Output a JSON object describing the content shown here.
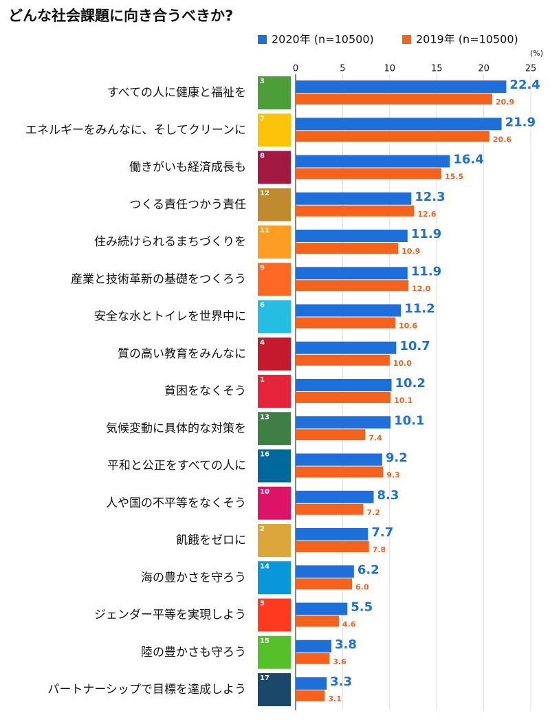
{
  "chart_data": {
    "type": "hbar",
    "title": "どんな社会課題に向き合うべきか?",
    "unit": "(%)",
    "categories": [
      "すべての人に健康と福祉を",
      "エネルギーをみんなに、そしてクリーンに",
      "働きがいも経済成長も",
      "つくる責任つかう責任",
      "住み続けられるまちづくりを",
      "産業と技術革新の基礎をつくろう",
      "安全な水とトイレを世界中に",
      "質の高い教育をみんなに",
      "貧困をなくそう",
      "気候変動に具体的な対策を",
      "平和と公正をすべての人に",
      "人や国の不平等をなくそう",
      "飢餓をゼロに",
      "海の豊かさを守ろう",
      "ジェンダー平等を実現しよう",
      "陸の豊かさも守ろう",
      "パートナーシップで目標を達成しよう"
    ],
    "goal_numbers": [
      3,
      7,
      8,
      12,
      11,
      9,
      6,
      4,
      1,
      13,
      16,
      10,
      2,
      14,
      5,
      15,
      17
    ],
    "goal_colors": [
      "#4C9F38",
      "#FCC30B",
      "#A21942",
      "#BF8B2E",
      "#FD9D24",
      "#FD6925",
      "#26BDE2",
      "#C5192D",
      "#E5243B",
      "#3F7E44",
      "#00689D",
      "#DD1367",
      "#DDA63A",
      "#0A97D9",
      "#FF3A21",
      "#56C02B",
      "#19486A"
    ],
    "series": [
      {
        "name": "2020年 (n=10500)",
        "color": "#1E6FD9",
        "values": [
          22.4,
          21.9,
          16.4,
          12.3,
          11.9,
          11.9,
          11.2,
          10.7,
          10.2,
          10.1,
          9.2,
          8.3,
          7.7,
          6.2,
          5.5,
          3.8,
          3.3
        ],
        "value_labels": [
          "22.4",
          "21.9",
          "16.4",
          "12.3",
          "11.9",
          "11.9",
          "11.2",
          "10.7",
          "10.2",
          "10.1",
          "9.2",
          "8.3",
          "7.7",
          "6.2",
          "5.5",
          "3.8",
          "3.3"
        ]
      },
      {
        "name": "2019年 (n=10500)",
        "color": "#F5621E",
        "values": [
          20.9,
          20.6,
          15.5,
          12.6,
          10.9,
          12.0,
          10.6,
          10.0,
          10.1,
          7.4,
          9.3,
          7.2,
          7.8,
          6.0,
          4.6,
          3.6,
          3.1
        ],
        "value_labels": [
          "20.9",
          "20.6",
          "15.5",
          "12.6",
          "10.9",
          "12.0",
          "10.6",
          "10.0",
          "10.1",
          "7.4",
          "9.3",
          "7.2",
          "7.8",
          "6.0",
          "4.6",
          "3.6",
          "3.1"
        ]
      }
    ],
    "xlim": [
      0,
      25
    ],
    "xticks": [
      0,
      5,
      10,
      15,
      20,
      25
    ],
    "grid": true
  }
}
